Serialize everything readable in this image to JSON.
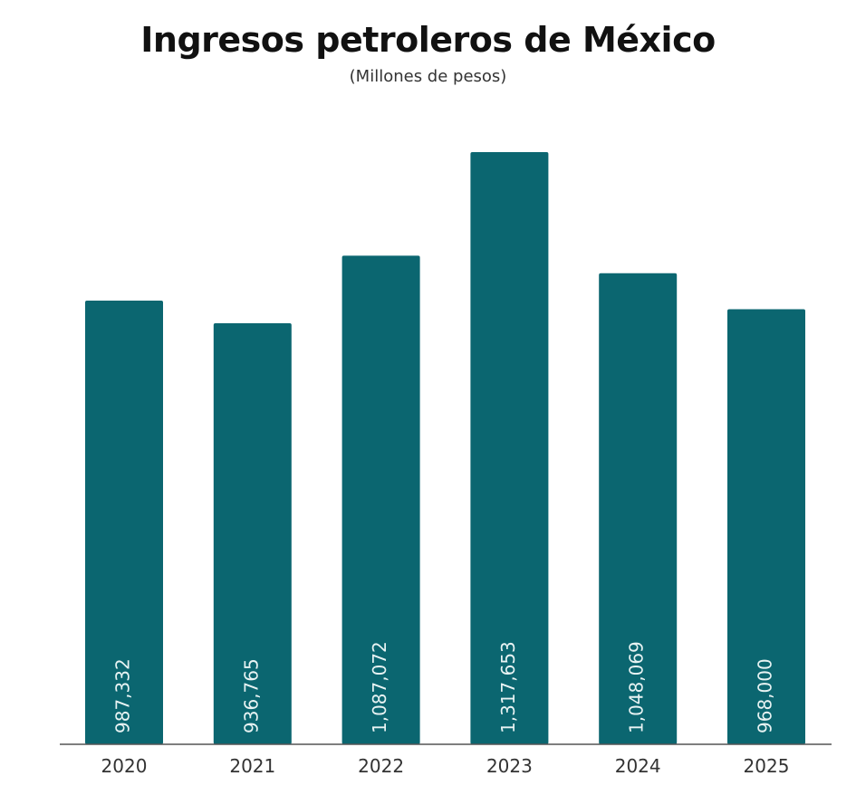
{
  "chart_data": {
    "type": "bar",
    "title": "Ingresos petroleros de México",
    "subtitle": "(Millones de pesos)",
    "categories": [
      "2020",
      "2021",
      "2022",
      "2023",
      "2024",
      "2025"
    ],
    "values": [
      987332,
      936765,
      1087072,
      1317653,
      1048069,
      968000
    ],
    "value_labels": [
      "987,332",
      "936,765",
      "1,087,072",
      "1,317,653",
      "1,048,069",
      "968,000"
    ],
    "xlabel": "",
    "ylabel": "",
    "ylim": [
      0,
      1317653
    ],
    "grid": false,
    "legend": "none",
    "bar_color": "#0b6670",
    "axis_color": "#555555"
  }
}
